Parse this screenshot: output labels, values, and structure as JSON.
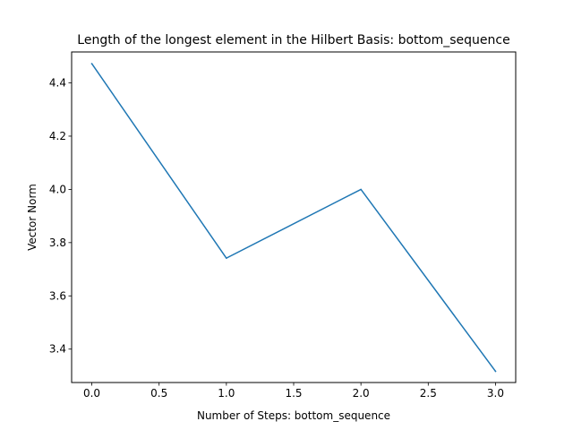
{
  "chart_data": {
    "type": "line",
    "title": "Length of the longest element in the Hilbert Basis: bottom_sequence",
    "xlabel": "Number of Steps: bottom_sequence",
    "ylabel": "Vector Norm",
    "xlim": [
      -0.15,
      3.15
    ],
    "ylim": [
      3.2745,
      4.5162
    ],
    "xticks": [
      0.0,
      0.5,
      1.0,
      1.5,
      2.0,
      2.5,
      3.0
    ],
    "xtick_labels": [
      "0.0",
      "0.5",
      "1.0",
      "1.5",
      "2.0",
      "2.5",
      "3.0"
    ],
    "yticks": [
      3.4,
      3.6,
      3.8,
      4.0,
      4.2,
      4.4
    ],
    "ytick_labels": [
      "3.4",
      "3.6",
      "3.8",
      "4.0",
      "4.2",
      "4.4"
    ],
    "grid": false,
    "series": [
      {
        "color": "#1f77b4",
        "x": [
          0,
          1,
          2,
          3
        ],
        "y": [
          4.4721,
          3.7417,
          4.0,
          3.3166
        ]
      }
    ]
  }
}
